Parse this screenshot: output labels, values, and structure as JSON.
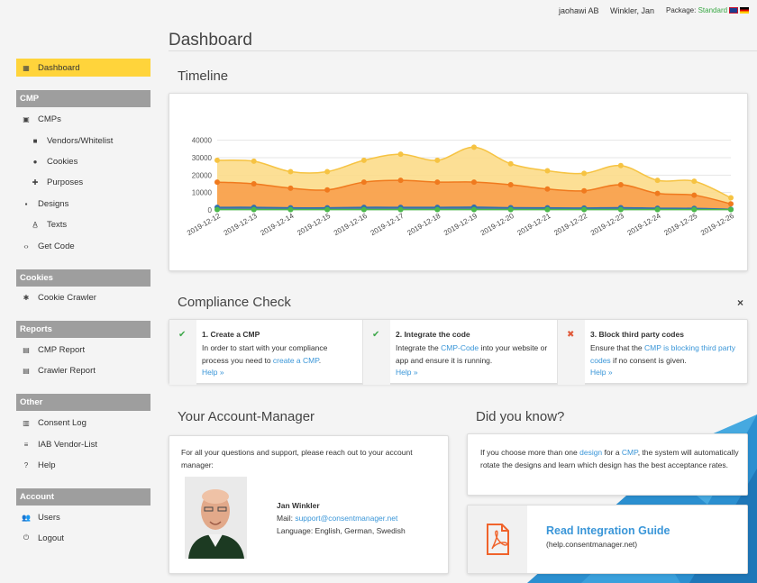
{
  "topbar": {
    "account": "jaohawi AB",
    "user": "Winkler, Jan",
    "package_label": "Package:",
    "package_value": "Standard"
  },
  "sidebar": {
    "active": "Dashboard",
    "sections": [
      {
        "header": "CMP",
        "items": [
          "CMPs",
          "Vendors/Whitelist",
          "Cookies",
          "Purposes",
          "Designs",
          "Texts",
          "Get Code"
        ]
      },
      {
        "header": "Cookies",
        "items": [
          "Cookie Crawler"
        ]
      },
      {
        "header": "Reports",
        "items": [
          "CMP Report",
          "Crawler Report"
        ]
      },
      {
        "header": "Other",
        "items": [
          "Consent Log",
          "IAB Vendor-List",
          "Help"
        ]
      },
      {
        "header": "Account",
        "items": [
          "Users",
          "Logout"
        ]
      }
    ]
  },
  "page_title": "Dashboard",
  "timeline": {
    "title": "Timeline",
    "chart_data": {
      "type": "area",
      "x": [
        "2019-12-12",
        "2019-12-13",
        "2019-12-14",
        "2019-12-15",
        "2019-12-16",
        "2019-12-17",
        "2019-12-18",
        "2019-12-19",
        "2019-12-20",
        "2019-12-21",
        "2019-12-22",
        "2019-12-23",
        "2019-12-24",
        "2019-12-25",
        "2019-12-26"
      ],
      "yticks": [
        0,
        10000,
        20000,
        30000,
        40000
      ],
      "ytick_labels": [
        "0",
        "10000",
        "20000",
        "30000",
        "40000"
      ],
      "ylim": [
        0,
        45000
      ],
      "grid": true,
      "series": [
        {
          "color": "#f6c342",
          "fill": "#fcdc8a",
          "values": [
            28500,
            28000,
            22000,
            22000,
            28500,
            32000,
            28500,
            36000,
            26500,
            22500,
            21000,
            25500,
            17000,
            16500,
            7000
          ]
        },
        {
          "color": "#f07a1e",
          "fill": "#f8a04c",
          "values": [
            16000,
            15000,
            12500,
            11500,
            16000,
            17000,
            16000,
            16000,
            14500,
            12000,
            11000,
            14500,
            9500,
            8500,
            3500
          ]
        },
        {
          "color": "#2f6fb0",
          "fill": "#2f6fb0",
          "values": [
            1500,
            1500,
            1200,
            1200,
            1500,
            1500,
            1500,
            1600,
            1300,
            1200,
            1100,
            1300,
            1000,
            900,
            400
          ]
        },
        {
          "color": "#4cb84c",
          "fill": "#4cb84c",
          "values": [
            200,
            200,
            200,
            200,
            200,
            200,
            200,
            200,
            200,
            200,
            200,
            200,
            200,
            200,
            200
          ]
        }
      ]
    }
  },
  "compliance": {
    "title": "Compliance Check",
    "close": "×",
    "steps": [
      {
        "status": "done",
        "mark": "✔",
        "title": "1. Create a CMP",
        "text1": "In order to start with your compliance process you need to ",
        "link": "create a CMP",
        "text2": ".",
        "help": "Help »"
      },
      {
        "status": "done",
        "mark": "✔",
        "title": "2. Integrate the code",
        "text1": "Integrate the ",
        "link": "CMP-Code",
        "text2": " into your website or app and ensure it is running.",
        "help": "Help »"
      },
      {
        "status": "todo",
        "mark": "✖",
        "title": "3. Block third party codes",
        "text1": "Ensure that the ",
        "link": "CMP is blocking third party codes",
        "text2": " if no consent is given.",
        "help": "Help »"
      }
    ]
  },
  "account_manager": {
    "title": "Your Account-Manager",
    "intro": "For all your questions and support, please reach out to your account manager:",
    "name": "Jan Winkler",
    "mail_label": "Mail: ",
    "mail": "support@consentmanager.net",
    "language": "Language: English, German, Swedish"
  },
  "did_you_know": {
    "title": "Did you know?",
    "t1": "If you choose more than one ",
    "l1": "design",
    "t2": " for a ",
    "l2": "CMP",
    "t3": ", the system will automatically rotate the designs and learn which design has the best acceptance rates."
  },
  "guide": {
    "title": "Read Integration Guide",
    "url": "(help.consentmanager.net)"
  }
}
